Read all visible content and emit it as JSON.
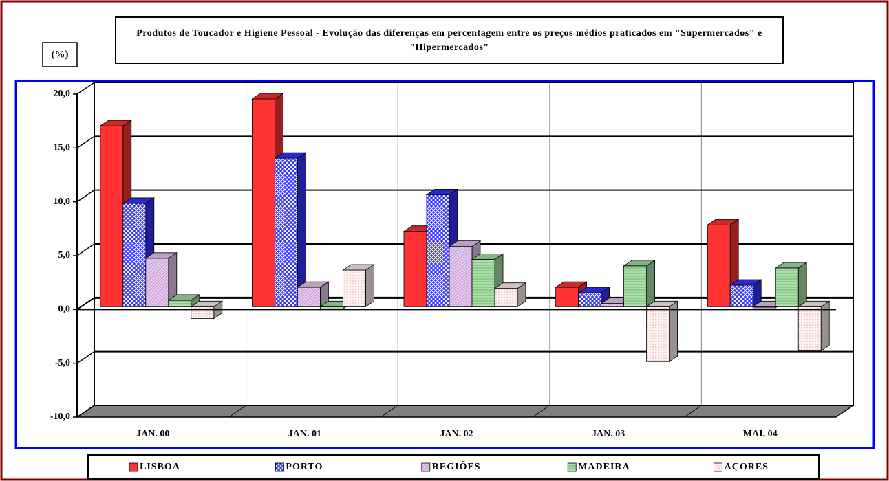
{
  "chart_data": {
    "type": "bar3d",
    "title": "Produtos de Toucador e Higiene Pessoal - Evolução das diferenças em percentagem entre os preços médios praticados em \"Supermercados\" e \"Hipermercados\"",
    "y_label": "(%)",
    "categories": [
      "JAN. 00",
      "JAN. 01",
      "JAN. 02",
      "JAN. 03",
      "MAI. 04"
    ],
    "series": [
      {
        "name": "LISBOA",
        "color": "#ff3333",
        "values": [
          16.8,
          19.3,
          7.0,
          1.8,
          7.6
        ]
      },
      {
        "name": "PORTO",
        "color": "#3333ff",
        "values": [
          9.6,
          13.8,
          10.4,
          1.3,
          2.0
        ]
      },
      {
        "name": "REGIÕES",
        "color": "#e6c8ee",
        "values": [
          4.5,
          1.8,
          5.6,
          0.3,
          -0.1
        ]
      },
      {
        "name": "MADEIRA",
        "color": "#a8e0a8",
        "values": [
          0.6,
          -0.2,
          4.4,
          3.8,
          3.6
        ]
      },
      {
        "name": "AÇORES",
        "color": "#fff0f0",
        "values": [
          -1.1,
          3.4,
          1.7,
          -5.1,
          -4.1
        ]
      }
    ],
    "ylim": [
      -10,
      20
    ],
    "yticks": [
      {
        "value": -10,
        "label": "-10,0"
      },
      {
        "value": -5,
        "label": "-5,0"
      },
      {
        "value": 0,
        "label": "0,0"
      },
      {
        "value": 5,
        "label": "5,0"
      },
      {
        "value": 10,
        "label": "10,0"
      },
      {
        "value": 15,
        "label": "15,0"
      },
      {
        "value": 20,
        "label": "20,0"
      }
    ],
    "grid": true
  }
}
